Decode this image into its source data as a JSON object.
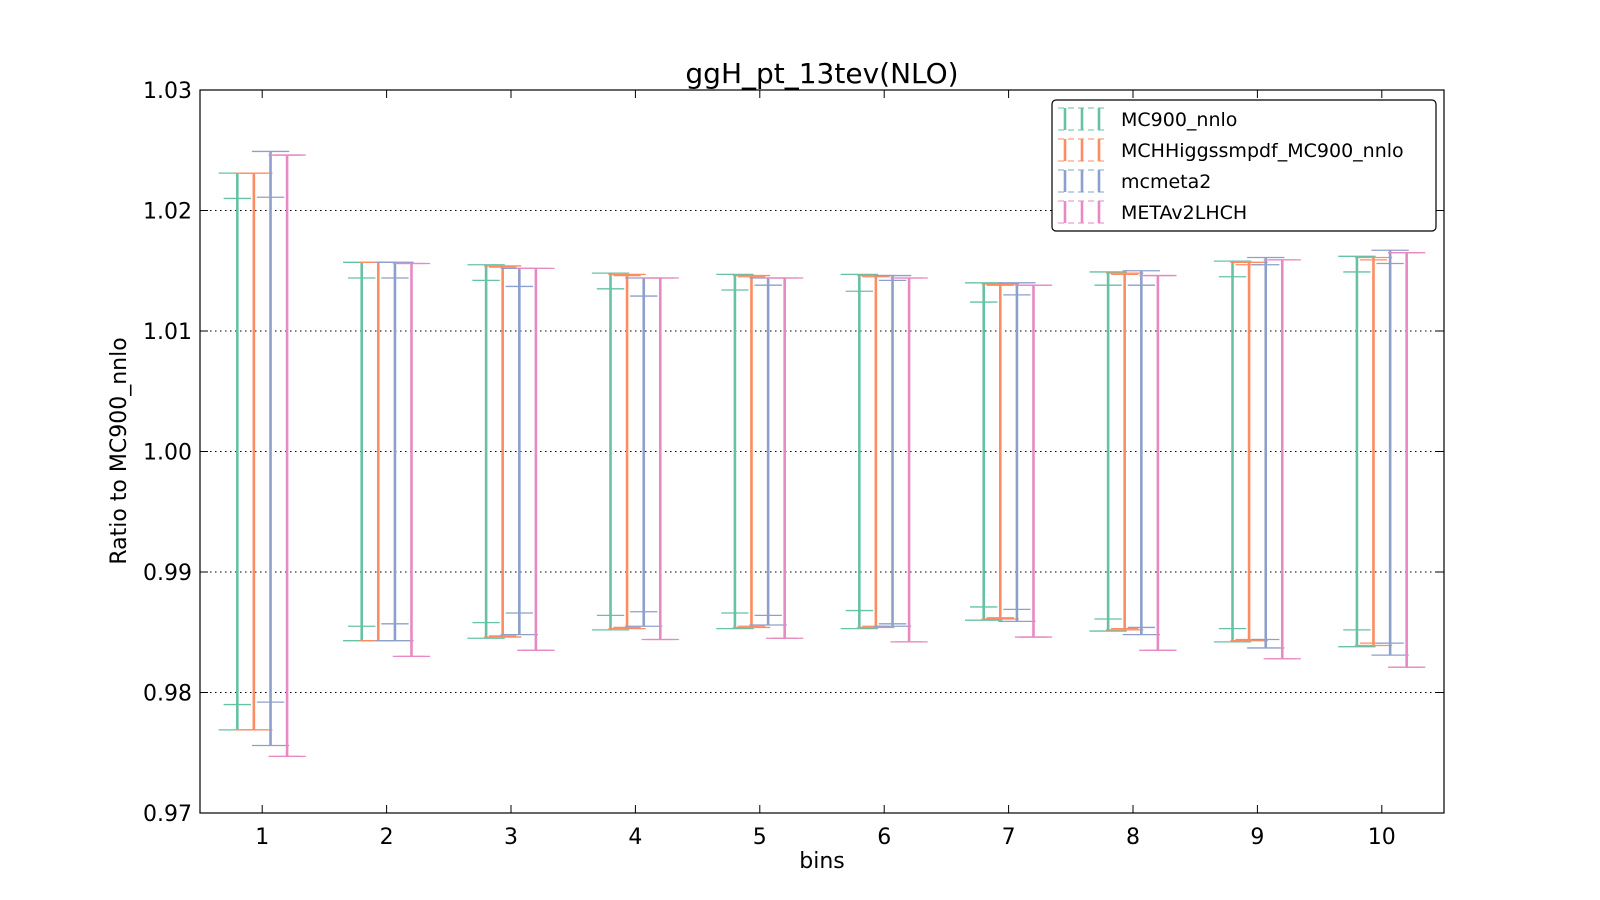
{
  "chart_data": {
    "type": "errorbar",
    "title": "ggH_pt_13tev(NLO)",
    "xlabel": "bins",
    "ylabel": "Ratio to MC900_nnlo",
    "xlim": [
      0.5,
      10.5
    ],
    "ylim": [
      0.97,
      1.03
    ],
    "x_ticks": [
      "1",
      "2",
      "3",
      "4",
      "5",
      "6",
      "7",
      "8",
      "9",
      "10"
    ],
    "y_ticks": [
      "0.97",
      "0.98",
      "0.99",
      "1.00",
      "1.01",
      "1.02",
      "1.03"
    ],
    "grid": "horizontal dotted",
    "legend_position": "top-right",
    "series": [
      {
        "name": "MC900_nnlo",
        "color": "#66c2a5",
        "outer_upper": [
          1.0231,
          1.0157,
          1.0155,
          1.0148,
          1.0147,
          1.0147,
          1.014,
          1.0149,
          1.0158,
          1.0162
        ],
        "outer_lower": [
          0.9769,
          0.9843,
          0.9845,
          0.9852,
          0.9853,
          0.9853,
          0.986,
          0.9851,
          0.9842,
          0.9838
        ],
        "inner_upper": [
          1.021,
          1.0144,
          1.0142,
          1.0135,
          1.0134,
          1.0133,
          1.0124,
          1.0138,
          1.0145,
          1.0149
        ],
        "inner_lower": [
          0.979,
          0.9855,
          0.9858,
          0.9864,
          0.9866,
          0.9868,
          0.9871,
          0.9861,
          0.9853,
          0.9852
        ]
      },
      {
        "name": "MCHHiggssmpdf_MC900_nnlo",
        "color": "#fc8d62",
        "outer_upper": [
          1.0231,
          1.0157,
          1.0154,
          1.0147,
          1.0146,
          1.0146,
          1.0139,
          1.0148,
          1.0157,
          1.0161
        ],
        "outer_lower": [
          0.9769,
          0.9843,
          0.9846,
          0.9853,
          0.9854,
          0.9854,
          0.9861,
          0.9852,
          0.9843,
          0.9839
        ],
        "inner_upper": [
          1.0231,
          1.0157,
          1.0153,
          1.0146,
          1.0145,
          1.0145,
          1.0138,
          1.0147,
          1.0155,
          1.0159
        ],
        "inner_lower": [
          0.9769,
          0.9843,
          0.9847,
          0.9854,
          0.9855,
          0.9855,
          0.9862,
          0.9853,
          0.9844,
          0.9841
        ]
      },
      {
        "name": "mcmeta2",
        "color": "#8da0cb",
        "outer_upper": [
          1.0249,
          1.0157,
          1.0152,
          1.0144,
          1.0144,
          1.0146,
          1.014,
          1.015,
          1.0161,
          1.0167
        ],
        "outer_lower": [
          0.9756,
          0.9843,
          0.9848,
          0.9855,
          0.9856,
          0.9855,
          0.9859,
          0.9848,
          0.9837,
          0.9831
        ],
        "inner_upper": [
          1.0211,
          1.0144,
          1.0137,
          1.0129,
          1.0138,
          1.0142,
          1.013,
          1.0138,
          1.0155,
          1.0156
        ],
        "inner_lower": [
          0.9792,
          0.9857,
          0.9866,
          0.9867,
          0.9864,
          0.9857,
          0.9869,
          0.9854,
          0.9844,
          0.9841
        ]
      },
      {
        "name": "METAv2LHCH",
        "color": "#e78ac3",
        "outer_upper": [
          1.0246,
          1.0156,
          1.0152,
          1.0144,
          1.0144,
          1.0144,
          1.0138,
          1.0146,
          1.0159,
          1.0165
        ],
        "outer_lower": [
          0.9747,
          0.983,
          0.9835,
          0.9844,
          0.9845,
          0.9842,
          0.9846,
          0.9835,
          0.9828,
          0.9821
        ],
        "inner_upper": [
          1.0246,
          1.0156,
          1.0152,
          1.0144,
          1.0144,
          1.0144,
          1.0138,
          1.0146,
          1.0159,
          1.0165
        ],
        "inner_lower": [
          0.9747,
          0.983,
          0.9835,
          0.9844,
          0.9845,
          0.9842,
          0.9846,
          0.9835,
          0.9828,
          0.9821
        ]
      }
    ]
  }
}
